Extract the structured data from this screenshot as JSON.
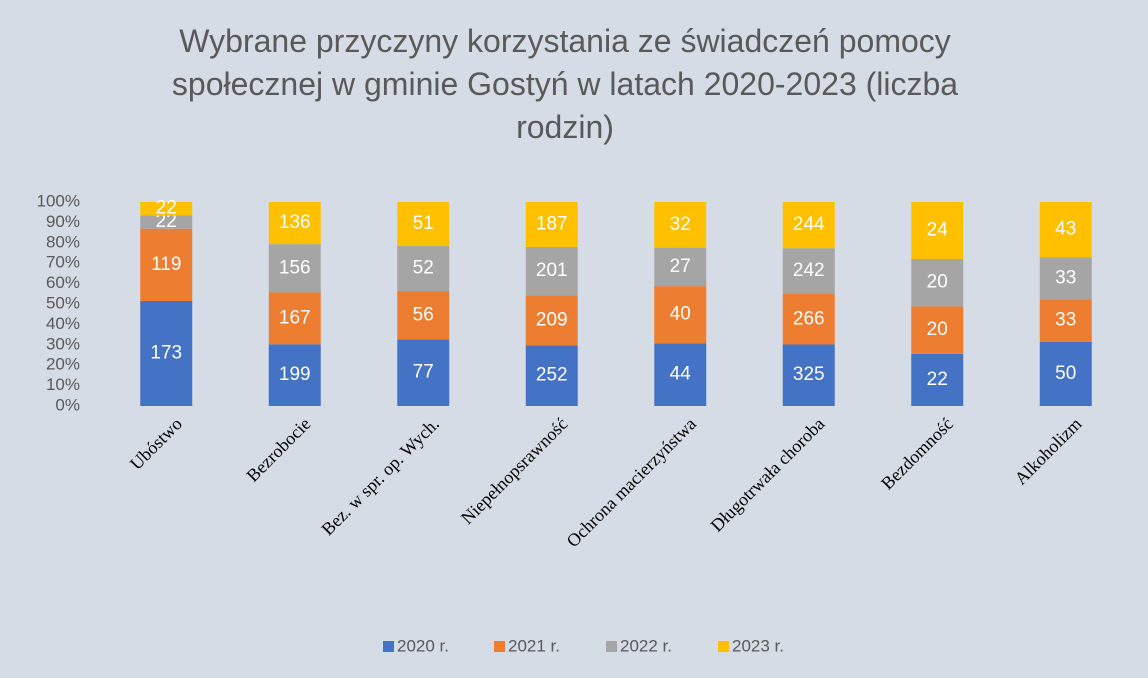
{
  "chart_data": {
    "type": "bar",
    "stack": "percent",
    "title": "Wybrane przyczyny korzystania ze świadczeń pomocy społecznej w gminie Gostyń w latach 2020-2023 (liczba rodzin)",
    "categories": [
      "Ubóstwo",
      "Bezrobocie",
      "Bez. w spr. op. Wych.",
      "Niepełnopsrawność",
      "Ochrona macierzyństwa",
      "Długotrwała choroba",
      "Bezdomność",
      "Alkoholizm"
    ],
    "series": [
      {
        "name": "2020 r.",
        "color": "#4472c4",
        "values": [
          173,
          199,
          77,
          252,
          44,
          325,
          22,
          50
        ]
      },
      {
        "name": "2021 r.",
        "color": "#ed7d31",
        "values": [
          119,
          167,
          56,
          209,
          40,
          266,
          20,
          33
        ]
      },
      {
        "name": "2022 r.",
        "color": "#a5a5a5",
        "values": [
          22,
          156,
          52,
          201,
          27,
          242,
          20,
          33
        ]
      },
      {
        "name": "2023 r.",
        "color": "#ffc000",
        "values": [
          22,
          136,
          51,
          187,
          32,
          244,
          24,
          43
        ]
      }
    ],
    "ylim": [
      0,
      100
    ],
    "yticks": [
      {
        "value": 0,
        "label": "0%"
      },
      {
        "value": 10,
        "label": "10%"
      },
      {
        "value": 20,
        "label": "20%"
      },
      {
        "value": 30,
        "label": "30%"
      },
      {
        "value": 40,
        "label": "40%"
      },
      {
        "value": 50,
        "label": "50%"
      },
      {
        "value": 60,
        "label": "60%"
      },
      {
        "value": 70,
        "label": "70%"
      },
      {
        "value": 80,
        "label": "80%"
      },
      {
        "value": 90,
        "label": "90%"
      },
      {
        "value": 100,
        "label": "100%"
      }
    ],
    "legend": "bottom"
  }
}
